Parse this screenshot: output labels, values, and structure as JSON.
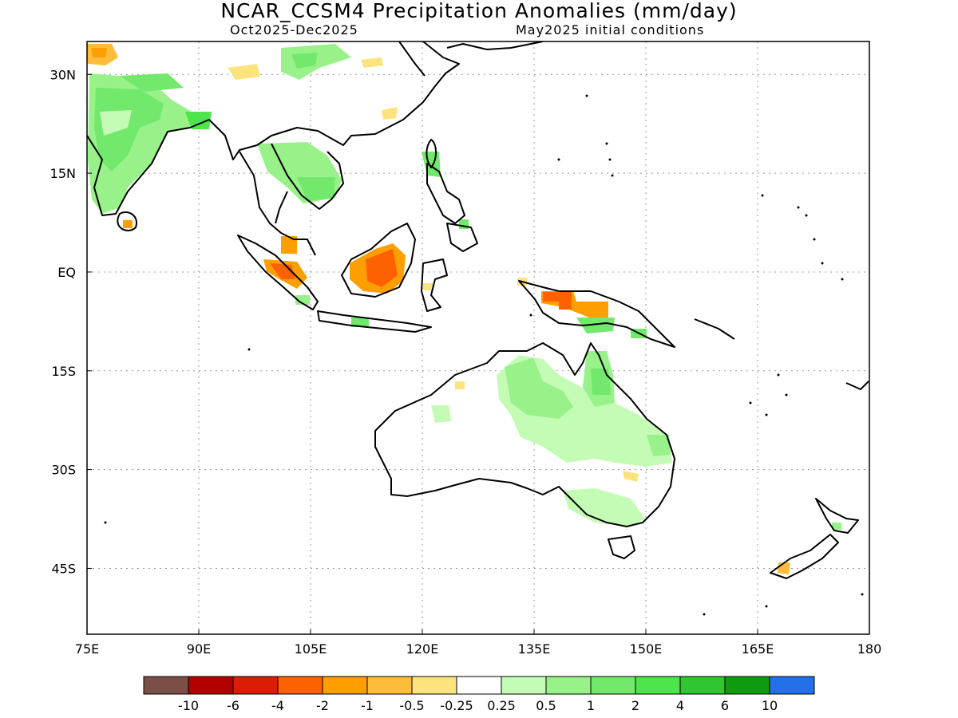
{
  "title": "NCAR_CCSM4 Precipitation Anomalies (mm/day)",
  "subtitle_left": "Oct2025-Dec2025",
  "subtitle_right": "May2025 initial conditions",
  "map": {
    "lon_range": [
      75,
      180
    ],
    "lat_range": [
      -55,
      35
    ],
    "x_ticks": [
      {
        "value": 75,
        "label": "75E"
      },
      {
        "value": 90,
        "label": "90E"
      },
      {
        "value": 105,
        "label": "105E"
      },
      {
        "value": 120,
        "label": "120E"
      },
      {
        "value": 135,
        "label": "135E"
      },
      {
        "value": 150,
        "label": "150E"
      },
      {
        "value": 165,
        "label": "165E"
      },
      {
        "value": 180,
        "label": "180"
      }
    ],
    "y_ticks": [
      {
        "value": 30,
        "label": "30N"
      },
      {
        "value": 15,
        "label": "15N"
      },
      {
        "value": 0,
        "label": "EQ"
      },
      {
        "value": -15,
        "label": "15S"
      },
      {
        "value": -30,
        "label": "30S"
      },
      {
        "value": -45,
        "label": "45S"
      }
    ],
    "grid": true,
    "coastline_color": "#000000"
  },
  "colorbar": {
    "colors": [
      "#7b4f45",
      "#b50000",
      "#dd1c06",
      "#fd6100",
      "#fd9f00",
      "#fdbc3a",
      "#fde37d",
      "#ffffff",
      "#c4fcb6",
      "#98f289",
      "#72e86c",
      "#4ee54c",
      "#31c62f",
      "#0f9b0f",
      "#2470e8"
    ],
    "labels": [
      "-10",
      "-6",
      "-4",
      "-2",
      "-1",
      "-0.5",
      "-0.25",
      "0.25",
      "0.5",
      "1",
      "2",
      "4",
      "6",
      "10"
    ]
  }
}
